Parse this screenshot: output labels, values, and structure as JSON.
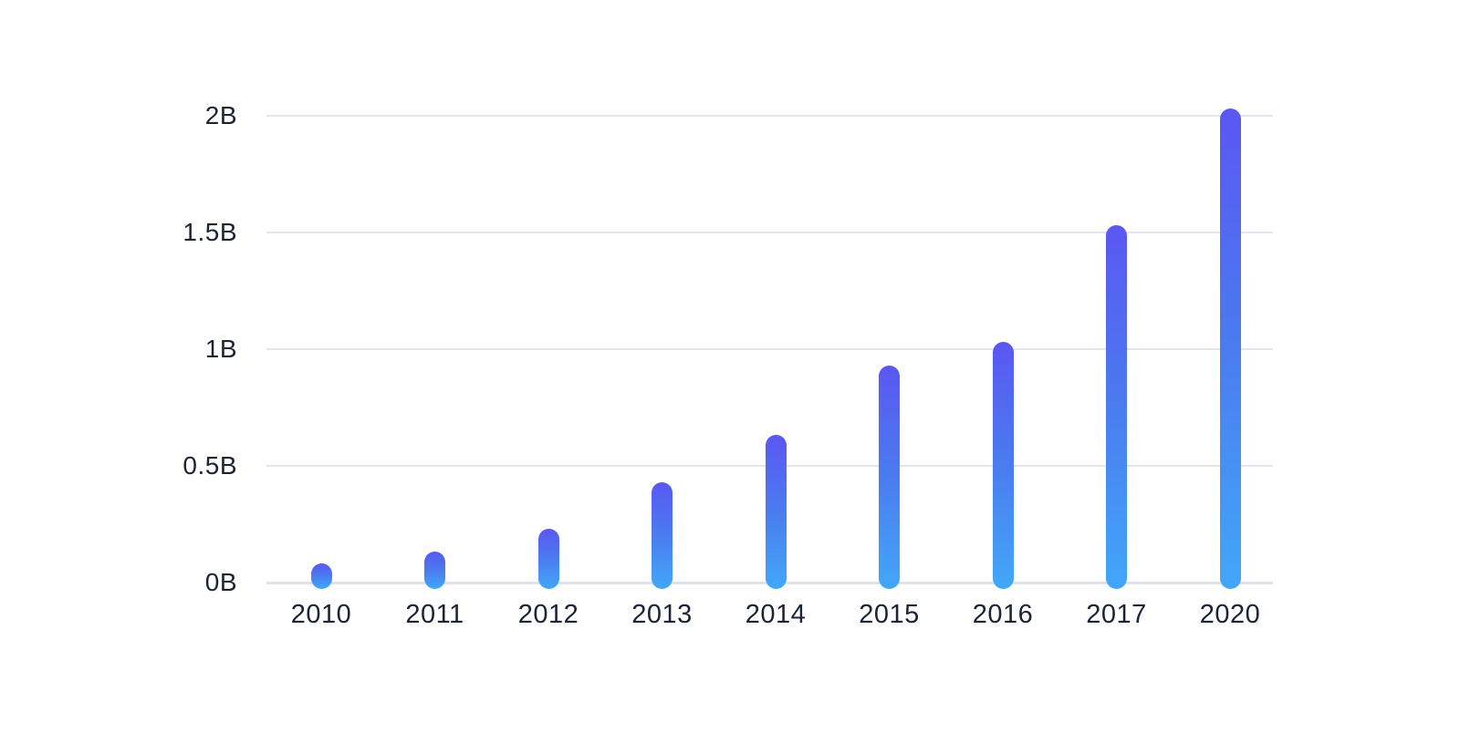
{
  "page": {
    "background_color": "#ffffff"
  },
  "chart_data": {
    "type": "bar",
    "title": "",
    "xlabel": "",
    "ylabel": "",
    "categories": [
      "2010",
      "2011",
      "2012",
      "2013",
      "2014",
      "2015",
      "2016",
      "2017",
      "2020"
    ],
    "values": [
      0.05,
      0.1,
      0.2,
      0.4,
      0.6,
      0.9,
      1.0,
      1.5,
      2.0
    ],
    "unit": "billions",
    "ylim": [
      0,
      2
    ],
    "y_ticks": [
      {
        "label": "0B",
        "value": 0
      },
      {
        "label": "0.5B",
        "value": 0.5
      },
      {
        "label": "1B",
        "value": 1
      },
      {
        "label": "1.5B",
        "value": 1.5
      },
      {
        "label": "2B",
        "value": 2
      }
    ],
    "grid": "horizontal",
    "legend": "none",
    "bar_style": {
      "shape": "pill-rounded-both-ends",
      "gradient_top_color": "#5b57f2",
      "gradient_mid_color": "#4a7cf0",
      "gradient_bottom_color": "#42a7f8"
    },
    "colors": {
      "gridline": "#e2e5ee",
      "baseline": "#dfe2ea",
      "label_text": "#1b2337"
    }
  }
}
